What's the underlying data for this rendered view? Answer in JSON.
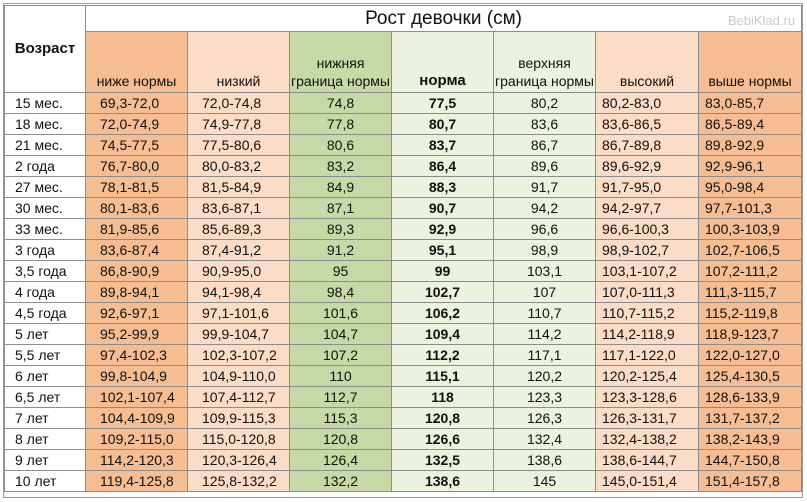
{
  "title": "Рост девочки (см)",
  "watermark": "BebiKlad.ru",
  "age_header": "Возраст",
  "columns": [
    "ниже нормы",
    "низкий",
    "нижняя граница нормы",
    "норма",
    "верхняя граница нормы",
    "высокий",
    "выше нормы"
  ],
  "rows": [
    {
      "age": "15 мес.",
      "values": [
        "69,3-72,0",
        "72,0-74,8",
        "74,8",
        "77,5",
        "80,2",
        "80,2-83,0",
        "83,0-85,7"
      ]
    },
    {
      "age": "18 мес.",
      "values": [
        "72,0-74,9",
        "74,9-77,8",
        "77,8",
        "80,7",
        "83,6",
        "83,6-86,5",
        "86,5-89,4"
      ]
    },
    {
      "age": "21 мес.",
      "values": [
        "74,5-77,5",
        "77,5-80,6",
        "80,6",
        "83,7",
        "86,7",
        "86,7-89,8",
        "89,8-92,9"
      ]
    },
    {
      "age": "2 года",
      "values": [
        "76,7-80,0",
        "80,0-83,2",
        "83,2",
        "86,4",
        "89,6",
        "89,6-92,9",
        "92,9-96,1"
      ]
    },
    {
      "age": "27 мес.",
      "values": [
        "78,1-81,5",
        "81,5-84,9",
        "84,9",
        "88,3",
        "91,7",
        "91,7-95,0",
        "95,0-98,4"
      ]
    },
    {
      "age": "30 мес.",
      "values": [
        "80,1-83,6",
        "83,6-87,1",
        "87,1",
        "90,7",
        "94,2",
        "94,2-97,7",
        "97,7-101,3"
      ]
    },
    {
      "age": "33 мес.",
      "values": [
        "81,9-85,6",
        "85,6-89,3",
        "89,3",
        "92,9",
        "96,6",
        "96,6-100,3",
        "100,3-103,9"
      ]
    },
    {
      "age": "3 года",
      "values": [
        "83,6-87,4",
        "87,4-91,2",
        "91,2",
        "95,1",
        "98,9",
        "98,9-102,7",
        "102,7-106,5"
      ]
    },
    {
      "age": "3,5 года",
      "values": [
        "86,8-90,9",
        "90,9-95,0",
        "95",
        "99",
        "103,1",
        "103,1-107,2",
        "107,2-111,2"
      ]
    },
    {
      "age": "4 года",
      "values": [
        "89,8-94,1",
        "94,1-98,4",
        "98,4",
        "102,7",
        "107",
        "107,0-111,3",
        "111,3-115,7"
      ]
    },
    {
      "age": "4,5 года",
      "values": [
        "92,6-97,1",
        "97,1-101,6",
        "101,6",
        "106,2",
        "110,7",
        "110,7-115,2",
        "115,2-119,8"
      ]
    },
    {
      "age": "5 лет",
      "values": [
        "95,2-99,9",
        "99,9-104,7",
        "104,7",
        "109,4",
        "114,2",
        "114,2-118,9",
        "118,9-123,7"
      ]
    },
    {
      "age": "5,5 лет",
      "values": [
        "97,4-102,3",
        "102,3-107,2",
        "107,2",
        "112,2",
        "117,1",
        "117,1-122,0",
        "122,0-127,0"
      ]
    },
    {
      "age": "6 лет",
      "values": [
        "99,8-104,9",
        "104,9-110,0",
        "110",
        "115,1",
        "120,2",
        "120,2-125,4",
        "125,4-130,5"
      ]
    },
    {
      "age": "6,5 лет",
      "values": [
        "102,1-107,4",
        "107,4-112,7",
        "112,7",
        "118",
        "123,3",
        "123,3-128,6",
        "128,6-133,9"
      ]
    },
    {
      "age": "7 лет",
      "values": [
        "104,4-109,9",
        "109,9-115,3",
        "115,3",
        "120,8",
        "126,3",
        "126,3-131,7",
        "131,7-137,2"
      ]
    },
    {
      "age": "8 лет",
      "values": [
        "109,2-115,0",
        "115,0-120,8",
        "120,8",
        "126,6",
        "132,4",
        "132,4-138,2",
        "138,2-143,9"
      ]
    },
    {
      "age": "9 лет",
      "values": [
        "114,2-120,3",
        "120,3-126,4",
        "126,4",
        "132,5",
        "138,6",
        "138,6-144,7",
        "144,7-150,8"
      ]
    },
    {
      "age": "10 лет",
      "values": [
        "119,4-125,8",
        "125,8-132,2",
        "132,2",
        "138,6",
        "145",
        "145,0-151,4",
        "151,4-157,8"
      ]
    }
  ]
}
